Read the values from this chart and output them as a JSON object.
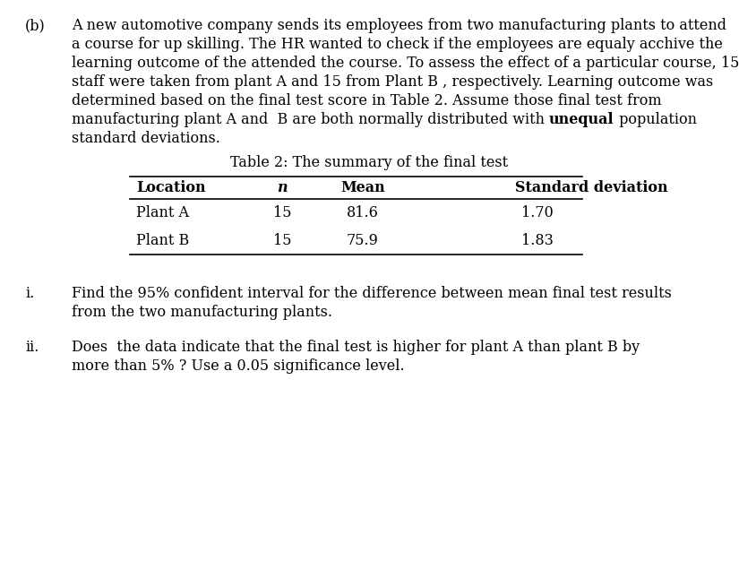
{
  "bg_color": "#ffffff",
  "label_b": "(b)",
  "para_line1": "A new automotive company sends its employees from two manufacturing plants to attend",
  "para_line2": "a course for up skilling. The HR wanted to check if the employees are equaly acchive the",
  "para_line3": "learning outcome of the attended the course. To assess the effect of a particular course, 15",
  "para_line4": "staff were taken from plant A and 15 from Plant B , respectively. Learning outcome was",
  "para_line5": "determined based on the final test score in Table 2. Assume those final test from",
  "para_line6_before": "manufacturing plant A and  B are both normally distributed with ",
  "para_line6_bold": "unequal",
  "para_line6_after": " population",
  "para_line7": "standard deviations.",
  "table_title": "Table 2: The summary of the final test",
  "table_headers": [
    "Location",
    "n",
    "Mean",
    "Standard deviation"
  ],
  "table_rows": [
    [
      "Plant A",
      "15",
      "81.6",
      "1.70"
    ],
    [
      "Plant B",
      "15",
      "75.9",
      "1.83"
    ]
  ],
  "question_i_label": "i.",
  "question_i_line1": "Find the 95% confident interval for the difference between mean final test results",
  "question_i_line2": "from the two manufacturing plants.",
  "question_ii_label": "ii.",
  "question_ii_line1": "Does  the data indicate that the final test is higher for plant A than plant B by",
  "question_ii_line2": "more than 5% ? Use a 0.05 significance level.",
  "font_size": 11.5,
  "font_family": "DejaVu Serif"
}
